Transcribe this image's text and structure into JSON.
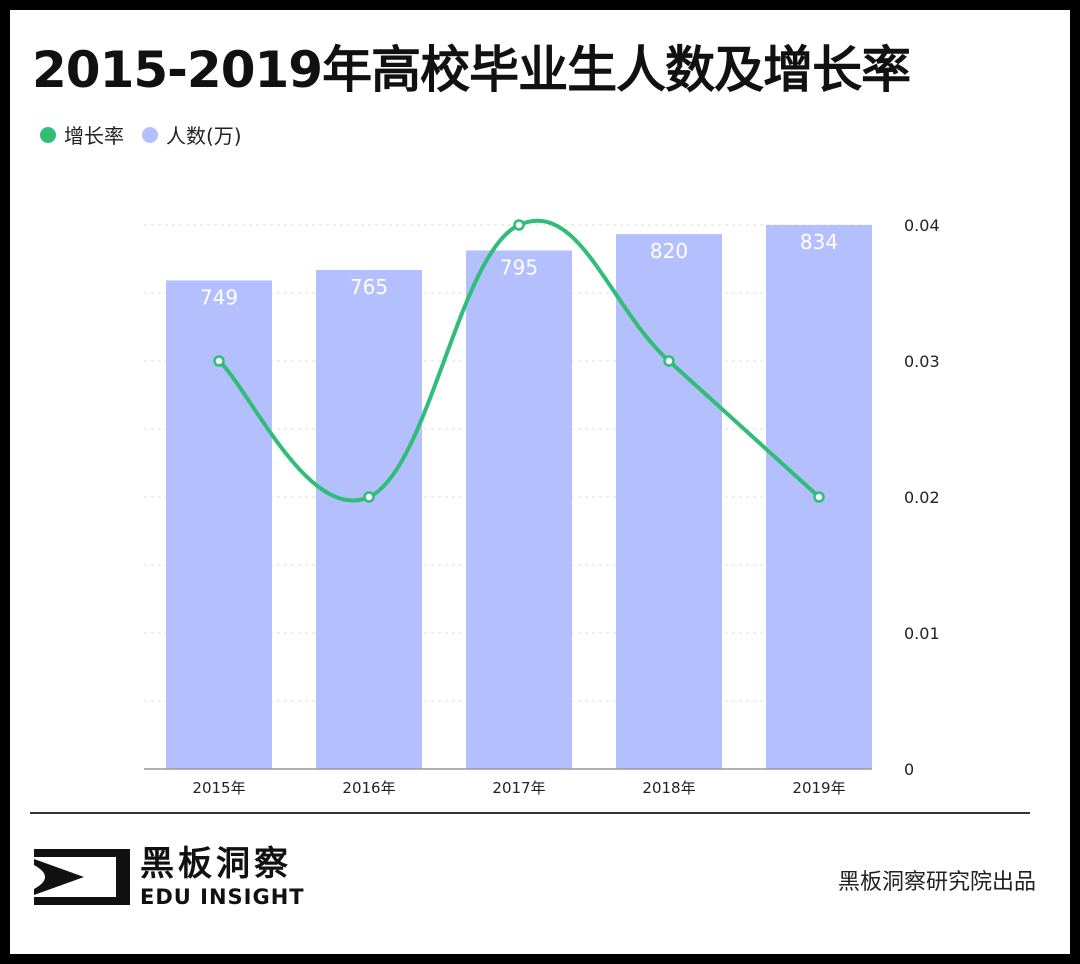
{
  "title": "2015-2019年高校毕业生人数及增长率",
  "legend": {
    "growth_label": "增长率",
    "count_label": "人数(万)"
  },
  "colors": {
    "bar": "#b4c0fd",
    "line": "#2fbd78",
    "grid": "#dddddd",
    "axis": "#999999"
  },
  "chart_data": {
    "type": "bar",
    "categories": [
      "2015年",
      "2016年",
      "2017年",
      "2018年",
      "2019年"
    ],
    "series": [
      {
        "name": "人数(万)",
        "type": "bar",
        "values": [
          749,
          765,
          795,
          820,
          834
        ]
      },
      {
        "name": "增长率",
        "type": "line",
        "axis": "right",
        "values": [
          0.03,
          0.02,
          0.04,
          0.03,
          0.02
        ]
      }
    ],
    "right_axis_ticks": [
      "0",
      "0.01",
      "0.02",
      "0.03",
      "0.04"
    ],
    "right_ylim": [
      0,
      0.04
    ],
    "legend_position": "top-left",
    "grid": true
  },
  "footer": {
    "logo_cn": "黑板洞察",
    "logo_en": "EDU INSIGHT",
    "credit": "黑板洞察研究院出品"
  }
}
